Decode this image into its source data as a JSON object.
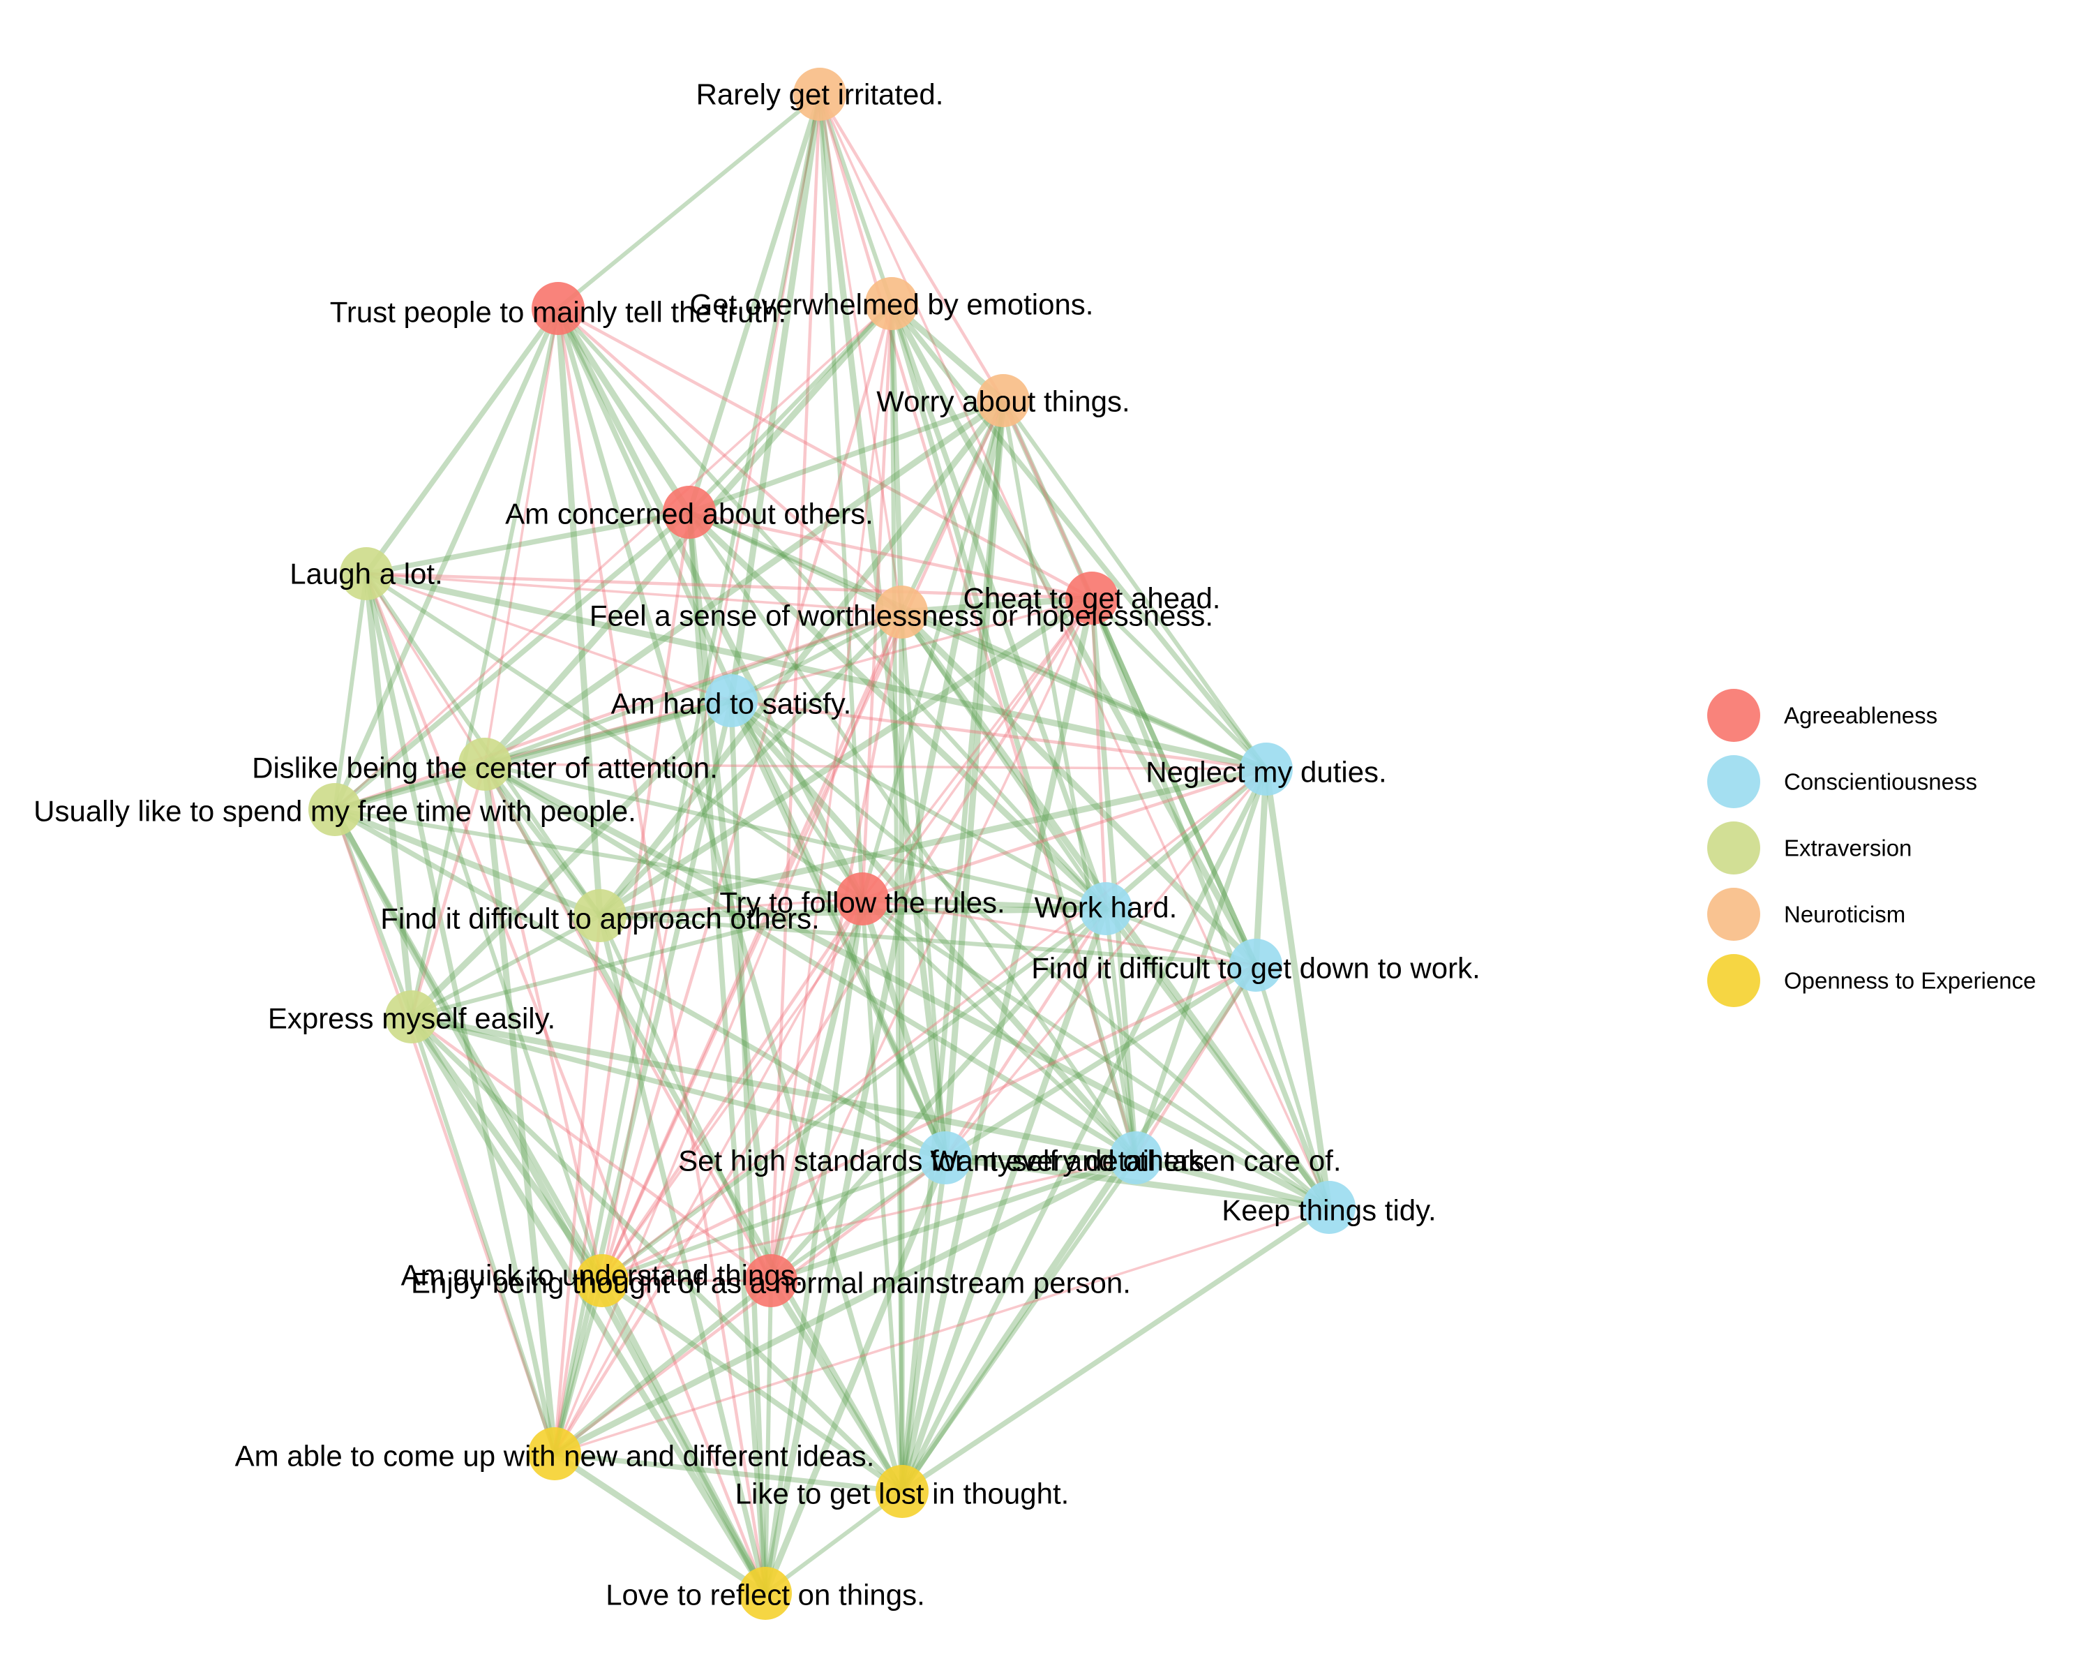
{
  "categories": [
    {
      "id": "A",
      "name": "Agreeableness",
      "color": "#F8766D"
    },
    {
      "id": "C",
      "name": "Conscientiousness",
      "color": "#9ADCF0"
    },
    {
      "id": "E",
      "name": "Extraversion",
      "color": "#CDDC8A"
    },
    {
      "id": "N",
      "name": "Neuroticism",
      "color": "#F8BC85"
    },
    {
      "id": "O",
      "name": "Openness to Experience",
      "color": "#F5D22F"
    }
  ],
  "nodes": [
    {
      "id": "n1",
      "label": "Rarely get irritated.",
      "cat": "N"
    },
    {
      "id": "n2",
      "label": "Get overwhelmed by emotions.",
      "cat": "N"
    },
    {
      "id": "n3",
      "label": "Worry about things.",
      "cat": "N"
    },
    {
      "id": "n4",
      "label": "Feel a sense of worthlessness or hopelessness.",
      "cat": "N"
    },
    {
      "id": "a1",
      "label": "Trust people to mainly tell the truth.",
      "cat": "A"
    },
    {
      "id": "a2",
      "label": "Am concerned about others.",
      "cat": "A"
    },
    {
      "id": "a3",
      "label": "Cheat to get ahead.",
      "cat": "A"
    },
    {
      "id": "a4",
      "label": "Try to follow the rules.",
      "cat": "A"
    },
    {
      "id": "a5",
      "label": "Enjoy being thought of as a normal mainstream person.",
      "cat": "A"
    },
    {
      "id": "e1",
      "label": "Laugh a lot.",
      "cat": "E"
    },
    {
      "id": "e2",
      "label": "Dislike being the center of attention.",
      "cat": "E"
    },
    {
      "id": "e3",
      "label": "Usually like to spend my free time with people.",
      "cat": "E"
    },
    {
      "id": "e4",
      "label": "Find it difficult to approach others.",
      "cat": "E"
    },
    {
      "id": "e5",
      "label": "Express myself easily.",
      "cat": "E"
    },
    {
      "id": "c1",
      "label": "Am hard to satisfy.",
      "cat": "C"
    },
    {
      "id": "c2",
      "label": "Neglect my duties.",
      "cat": "C"
    },
    {
      "id": "c3",
      "label": "Work hard.",
      "cat": "C"
    },
    {
      "id": "c4",
      "label": "Find it difficult to get down to work.",
      "cat": "C"
    },
    {
      "id": "c5",
      "label": "Set high standards for myself and others.",
      "cat": "C"
    },
    {
      "id": "c6",
      "label": "Want every detail taken care of.",
      "cat": "C"
    },
    {
      "id": "c7",
      "label": "Keep things tidy.",
      "cat": "C"
    },
    {
      "id": "o1",
      "label": "Am quick to understand things.",
      "cat": "O"
    },
    {
      "id": "o2",
      "label": "Am able to come up with new and different ideas.",
      "cat": "O"
    },
    {
      "id": "o3",
      "label": "Like to get lost in thought.",
      "cat": "O"
    },
    {
      "id": "o4",
      "label": "Love to reflect on things.",
      "cat": "O"
    }
  ],
  "edge_colors": {
    "positive": "#5A9E4E",
    "negative": "#F06E78"
  },
  "edges": [
    [
      "n1",
      "a1",
      "p"
    ],
    [
      "n1",
      "a2",
      "p"
    ],
    [
      "n1",
      "c1",
      "p"
    ],
    [
      "n1",
      "a4",
      "p"
    ],
    [
      "n1",
      "o1",
      "n"
    ],
    [
      "n1",
      "a5",
      "n"
    ],
    [
      "n1",
      "n2",
      "p"
    ],
    [
      "n1",
      "n3",
      "n"
    ],
    [
      "n1",
      "n4",
      "n"
    ],
    [
      "n1",
      "c6",
      "n"
    ],
    [
      "n1",
      "c7",
      "n"
    ],
    [
      "n1",
      "c5",
      "p"
    ],
    [
      "n1",
      "o2",
      "p"
    ],
    [
      "a1",
      "e1",
      "p"
    ],
    [
      "a1",
      "a2",
      "p"
    ],
    [
      "a1",
      "n4",
      "n"
    ],
    [
      "a1",
      "e3",
      "p"
    ],
    [
      "a1",
      "e4",
      "p"
    ],
    [
      "a1",
      "e2",
      "n"
    ],
    [
      "a1",
      "a3",
      "n"
    ],
    [
      "a1",
      "a4",
      "p"
    ],
    [
      "a1",
      "c3",
      "p"
    ],
    [
      "a1",
      "o3",
      "p"
    ],
    [
      "a1",
      "o4",
      "n"
    ],
    [
      "a1",
      "e5",
      "p"
    ],
    [
      "a1",
      "c5",
      "p"
    ],
    [
      "n2",
      "n3",
      "p"
    ],
    [
      "n2",
      "a2",
      "p"
    ],
    [
      "n2",
      "n4",
      "p"
    ],
    [
      "n2",
      "e2",
      "p"
    ],
    [
      "n2",
      "e3",
      "n"
    ],
    [
      "n2",
      "c2",
      "p"
    ],
    [
      "n2",
      "c4",
      "p"
    ],
    [
      "n2",
      "a4",
      "n"
    ],
    [
      "n2",
      "c3",
      "p"
    ],
    [
      "n2",
      "o1",
      "n"
    ],
    [
      "n2",
      "o3",
      "p"
    ],
    [
      "n2",
      "c6",
      "p"
    ],
    [
      "n2",
      "a5",
      "n"
    ],
    [
      "n3",
      "n4",
      "p"
    ],
    [
      "n3",
      "a2",
      "p"
    ],
    [
      "n3",
      "e4",
      "p"
    ],
    [
      "n3",
      "c2",
      "p"
    ],
    [
      "n3",
      "c4",
      "p"
    ],
    [
      "n3",
      "c5",
      "p"
    ],
    [
      "n3",
      "c6",
      "p"
    ],
    [
      "n3",
      "o3",
      "p"
    ],
    [
      "n3",
      "o4",
      "p"
    ],
    [
      "n3",
      "a4",
      "p"
    ],
    [
      "n3",
      "o1",
      "n"
    ],
    [
      "n3",
      "e2",
      "p"
    ],
    [
      "n3",
      "a3",
      "n"
    ],
    [
      "a2",
      "e1",
      "p"
    ],
    [
      "a2",
      "a3",
      "n"
    ],
    [
      "a2",
      "n4",
      "p"
    ],
    [
      "a2",
      "e3",
      "p"
    ],
    [
      "a2",
      "c3",
      "p"
    ],
    [
      "a2",
      "o2",
      "n"
    ],
    [
      "a2",
      "o4",
      "p"
    ],
    [
      "a2",
      "a5",
      "p"
    ],
    [
      "a2",
      "c6",
      "p"
    ],
    [
      "a2",
      "c2",
      "p"
    ],
    [
      "e1",
      "c1",
      "n"
    ],
    [
      "e1",
      "e3",
      "p"
    ],
    [
      "e1",
      "e2",
      "n"
    ],
    [
      "e1",
      "e5",
      "p"
    ],
    [
      "e1",
      "e4",
      "p"
    ],
    [
      "e1",
      "a3",
      "n"
    ],
    [
      "e1",
      "n4",
      "n"
    ],
    [
      "e1",
      "o1",
      "p"
    ],
    [
      "e1",
      "o2",
      "p"
    ],
    [
      "e1",
      "c2",
      "p"
    ],
    [
      "e1",
      "a4",
      "p"
    ],
    [
      "e1",
      "o4",
      "n"
    ],
    [
      "a3",
      "n4",
      "p"
    ],
    [
      "a3",
      "c2",
      "p"
    ],
    [
      "a3",
      "c4",
      "p"
    ],
    [
      "a3",
      "c3",
      "n"
    ],
    [
      "a3",
      "a4",
      "n"
    ],
    [
      "a3",
      "c6",
      "p"
    ],
    [
      "a3",
      "o1",
      "n"
    ],
    [
      "a3",
      "o2",
      "n"
    ],
    [
      "a3",
      "e2",
      "n"
    ],
    [
      "a3",
      "e4",
      "p"
    ],
    [
      "a3",
      "a5",
      "n"
    ],
    [
      "a3",
      "c7",
      "p"
    ],
    [
      "a3",
      "o3",
      "p"
    ],
    [
      "n4",
      "e2",
      "p"
    ],
    [
      "n4",
      "e4",
      "p"
    ],
    [
      "n4",
      "e3",
      "n"
    ],
    [
      "n4",
      "c1",
      "p"
    ],
    [
      "n4",
      "c2",
      "p"
    ],
    [
      "n4",
      "c4",
      "p"
    ],
    [
      "n4",
      "o1",
      "n"
    ],
    [
      "n4",
      "o2",
      "n"
    ],
    [
      "n4",
      "a5",
      "n"
    ],
    [
      "n4",
      "c5",
      "p"
    ],
    [
      "n4",
      "o3",
      "p"
    ],
    [
      "n4",
      "c7",
      "p"
    ],
    [
      "n4",
      "c3",
      "p"
    ],
    [
      "c1",
      "e2",
      "p"
    ],
    [
      "c1",
      "e3",
      "p"
    ],
    [
      "c1",
      "a4",
      "p"
    ],
    [
      "c1",
      "c5",
      "p"
    ],
    [
      "c1",
      "c6",
      "p"
    ],
    [
      "c1",
      "c7",
      "p"
    ],
    [
      "c1",
      "o4",
      "p"
    ],
    [
      "c1",
      "c2",
      "n"
    ],
    [
      "c1",
      "c3",
      "p"
    ],
    [
      "c1",
      "o2",
      "p"
    ],
    [
      "c1",
      "e5",
      "p"
    ],
    [
      "e2",
      "e3",
      "p"
    ],
    [
      "e2",
      "e4",
      "p"
    ],
    [
      "e2",
      "e5",
      "n"
    ],
    [
      "e2",
      "c2",
      "n"
    ],
    [
      "e2",
      "o1",
      "n"
    ],
    [
      "e2",
      "o2",
      "p"
    ],
    [
      "e2",
      "a5",
      "n"
    ],
    [
      "e2",
      "c6",
      "p"
    ],
    [
      "e2",
      "c7",
      "p"
    ],
    [
      "e2",
      "c3",
      "p"
    ],
    [
      "e2",
      "o3",
      "p"
    ],
    [
      "e3",
      "e4",
      "p"
    ],
    [
      "e3",
      "e5",
      "p"
    ],
    [
      "e3",
      "o1",
      "p"
    ],
    [
      "e3",
      "o2",
      "n"
    ],
    [
      "e3",
      "a4",
      "p"
    ],
    [
      "e3",
      "c5",
      "p"
    ],
    [
      "e3",
      "o4",
      "p"
    ],
    [
      "e4",
      "e5",
      "p"
    ],
    [
      "e4",
      "a4",
      "n"
    ],
    [
      "e4",
      "c2",
      "p"
    ],
    [
      "e4",
      "c4",
      "p"
    ],
    [
      "e4",
      "o2",
      "n"
    ],
    [
      "e4",
      "c3",
      "p"
    ],
    [
      "e4",
      "a5",
      "p"
    ],
    [
      "e4",
      "o4",
      "p"
    ],
    [
      "e5",
      "o1",
      "p"
    ],
    [
      "e5",
      "o2",
      "p"
    ],
    [
      "e5",
      "o3",
      "p"
    ],
    [
      "e5",
      "o4",
      "p"
    ],
    [
      "e5",
      "a5",
      "n"
    ],
    [
      "e5",
      "c5",
      "p"
    ],
    [
      "e5",
      "c6",
      "p"
    ],
    [
      "e5",
      "a4",
      "p"
    ],
    [
      "c2",
      "c3",
      "p"
    ],
    [
      "c2",
      "c4",
      "p"
    ],
    [
      "c2",
      "a4",
      "n"
    ],
    [
      "c2",
      "c6",
      "p"
    ],
    [
      "c2",
      "c7",
      "p"
    ],
    [
      "c2",
      "c5",
      "n"
    ],
    [
      "c2",
      "o3",
      "p"
    ],
    [
      "c2",
      "o1",
      "n"
    ],
    [
      "c3",
      "c4",
      "p"
    ],
    [
      "c3",
      "a4",
      "p"
    ],
    [
      "c3",
      "c5",
      "n"
    ],
    [
      "c3",
      "c6",
      "p"
    ],
    [
      "c3",
      "c7",
      "p"
    ],
    [
      "c3",
      "o3",
      "p"
    ],
    [
      "c3",
      "o1",
      "p"
    ],
    [
      "c3",
      "a5",
      "p"
    ],
    [
      "c4",
      "c6",
      "n"
    ],
    [
      "c4",
      "c7",
      "p"
    ],
    [
      "c4",
      "c5",
      "p"
    ],
    [
      "c4",
      "o3",
      "p"
    ],
    [
      "c4",
      "o1",
      "n"
    ],
    [
      "c4",
      "a4",
      "n"
    ],
    [
      "a4",
      "c5",
      "p"
    ],
    [
      "a4",
      "c6",
      "p"
    ],
    [
      "a4",
      "o1",
      "n"
    ],
    [
      "a4",
      "o2",
      "n"
    ],
    [
      "a4",
      "o3",
      "p"
    ],
    [
      "a4",
      "o4",
      "p"
    ],
    [
      "a4",
      "a5",
      "p"
    ],
    [
      "a4",
      "c7",
      "p"
    ],
    [
      "c5",
      "c6",
      "p"
    ],
    [
      "c5",
      "c7",
      "p"
    ],
    [
      "c5",
      "o1",
      "p"
    ],
    [
      "c5",
      "o3",
      "p"
    ],
    [
      "c5",
      "o4",
      "p"
    ],
    [
      "c5",
      "a5",
      "p"
    ],
    [
      "c5",
      "o2",
      "n"
    ],
    [
      "c6",
      "c7",
      "p"
    ],
    [
      "c6",
      "o3",
      "p"
    ],
    [
      "c6",
      "a5",
      "p"
    ],
    [
      "c6",
      "o2",
      "p"
    ],
    [
      "c6",
      "o1",
      "n"
    ],
    [
      "c7",
      "o3",
      "p"
    ],
    [
      "c7",
      "o2",
      "n"
    ],
    [
      "o1",
      "o2",
      "p"
    ],
    [
      "o1",
      "o3",
      "p"
    ],
    [
      "o1",
      "o4",
      "p"
    ],
    [
      "o1",
      "a5",
      "n"
    ],
    [
      "a5",
      "o2",
      "p"
    ],
    [
      "a5",
      "o3",
      "p"
    ],
    [
      "a5",
      "o4",
      "p"
    ],
    [
      "o2",
      "o3",
      "p"
    ],
    [
      "o2",
      "o4",
      "p"
    ],
    [
      "o3",
      "o4",
      "p"
    ]
  ]
}
